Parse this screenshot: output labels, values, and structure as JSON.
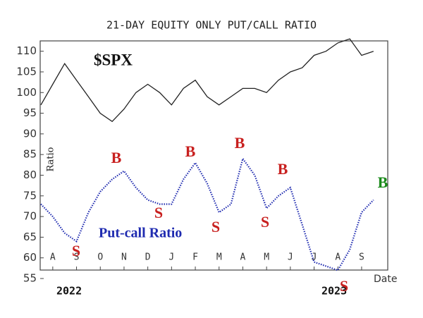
{
  "chart_data": {
    "type": "line",
    "title": "21-DAY EQUITY ONLY PUT/CALL RATIO",
    "y_label": "Ratio",
    "x_label": "Date",
    "year_labels": [
      "2022",
      "2023"
    ],
    "x": [
      0,
      0.5,
      1,
      1.5,
      2,
      2.5,
      3,
      3.5,
      4,
      4.5,
      5,
      5.5,
      6,
      6.5,
      7,
      7.5,
      8,
      8.5,
      9,
      9.5,
      10,
      10.5,
      11,
      11.5,
      12,
      12.5,
      13,
      13.5,
      14
    ],
    "xlim": [
      0,
      14.6
    ],
    "xticks": [
      {
        "value": 0.5,
        "label": "A"
      },
      {
        "value": 1.5,
        "label": "S"
      },
      {
        "value": 2.5,
        "label": "O"
      },
      {
        "value": 3.5,
        "label": "N"
      },
      {
        "value": 4.5,
        "label": "D"
      },
      {
        "value": 5.5,
        "label": "J"
      },
      {
        "value": 6.5,
        "label": "F"
      },
      {
        "value": 7.5,
        "label": "M"
      },
      {
        "value": 8.5,
        "label": "A"
      },
      {
        "value": 9.5,
        "label": "M"
      },
      {
        "value": 10.5,
        "label": "J"
      },
      {
        "value": 11.5,
        "label": "J"
      },
      {
        "value": 12.5,
        "label": "A"
      },
      {
        "value": 13.5,
        "label": "S"
      }
    ],
    "ylim": [
      55,
      112.5
    ],
    "yticks": [
      55,
      60,
      65,
      70,
      75,
      80,
      85,
      90,
      95,
      100,
      105,
      110
    ],
    "series": [
      {
        "name": "$SPX",
        "color": "#222222",
        "values": [
          97,
          102,
          107,
          103,
          99,
          95,
          93,
          96,
          100,
          102,
          100,
          97,
          101,
          103,
          99,
          97,
          99,
          101,
          101,
          100,
          103,
          105,
          106,
          109,
          110,
          112,
          113,
          109,
          110
        ]
      },
      {
        "name": "Put-call Ratio",
        "color": "#1f2bb0",
        "values": [
          73,
          70,
          66,
          64,
          71,
          76,
          79,
          81,
          77,
          74,
          73,
          73,
          79,
          83,
          78,
          71,
          73,
          84,
          80,
          72,
          75,
          77,
          68,
          59,
          58,
          57,
          62,
          71,
          74
        ]
      }
    ],
    "annotations": [
      {
        "text": "S",
        "color": "#c8201f"
      },
      {
        "text": "B",
        "color": "#c8201f"
      },
      {
        "text": "S",
        "color": "#c8201f"
      },
      {
        "text": "B",
        "color": "#c8201f"
      },
      {
        "text": "S",
        "color": "#c8201f"
      },
      {
        "text": "B",
        "color": "#c8201f"
      },
      {
        "text": "S",
        "color": "#c8201f"
      },
      {
        "text": "B",
        "color": "#c8201f"
      },
      {
        "text": "S",
        "color": "#c8201f"
      },
      {
        "text": "B",
        "color": "#1a8a1a"
      }
    ]
  }
}
